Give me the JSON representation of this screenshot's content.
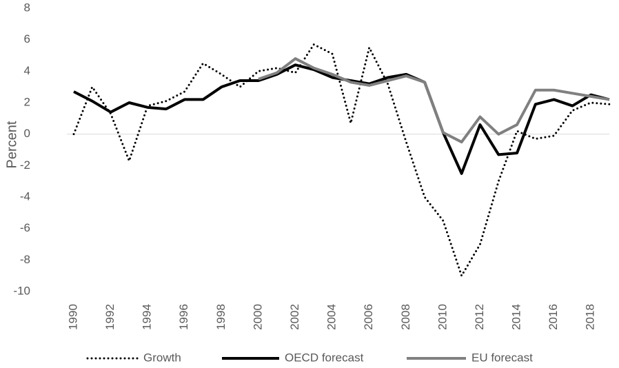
{
  "chart_data": {
    "type": "line",
    "y_label": "Percent",
    "x": [
      1990,
      1991,
      1992,
      1993,
      1994,
      1995,
      1996,
      1997,
      1998,
      1999,
      2000,
      2001,
      2002,
      2003,
      2004,
      2005,
      2006,
      2007,
      2008,
      2009,
      2010,
      2011,
      2012,
      2013,
      2014,
      2015,
      2016,
      2017,
      2018,
      2019
    ],
    "series": [
      {
        "name": "Growth",
        "color": "#000000",
        "dash": "dotted",
        "values": [
          0,
          3.0,
          1.3,
          -1.7,
          1.8,
          2.1,
          2.7,
          4.5,
          3.8,
          3.0,
          4.0,
          4.2,
          3.9,
          5.7,
          5.1,
          0.7,
          5.5,
          3.2,
          -0.5,
          -4.0,
          -5.5,
          -9.0,
          -7.0,
          -3.0,
          0.2,
          -0.3,
          -0.1,
          1.5,
          2.0,
          1.9
        ]
      },
      {
        "name": "OECD forecast",
        "color": "#000000",
        "values": [
          2.7,
          2.1,
          1.4,
          2.0,
          1.7,
          1.6,
          2.2,
          2.2,
          3.0,
          3.4,
          3.4,
          3.8,
          4.4,
          4.1,
          3.6,
          3.4,
          3.2,
          3.6,
          3.8,
          3.3,
          0.1,
          -2.5,
          0.6,
          -1.3,
          -1.2,
          1.9,
          2.2,
          1.8,
          2.5,
          2.2
        ]
      },
      {
        "name": "EU forecast",
        "color": "#808080",
        "values": [
          null,
          null,
          null,
          null,
          null,
          null,
          null,
          null,
          null,
          null,
          3.5,
          3.9,
          4.8,
          4.2,
          3.8,
          3.3,
          3.1,
          3.4,
          3.7,
          3.3,
          0.1,
          -0.5,
          1.1,
          0.0,
          0.6,
          2.8,
          2.8,
          2.6,
          2.4,
          2.2
        ]
      }
    ],
    "xlim": [
      1990,
      2019
    ],
    "xticks": [
      1990,
      1992,
      1994,
      1996,
      1998,
      2000,
      2002,
      2004,
      2006,
      2008,
      2010,
      2012,
      2014,
      2016,
      2018
    ],
    "ylim": [
      -10,
      8
    ],
    "yticks": [
      -10,
      -8,
      -6,
      -4,
      -2,
      0,
      2,
      4,
      6,
      8
    ],
    "legend": "bottom"
  }
}
